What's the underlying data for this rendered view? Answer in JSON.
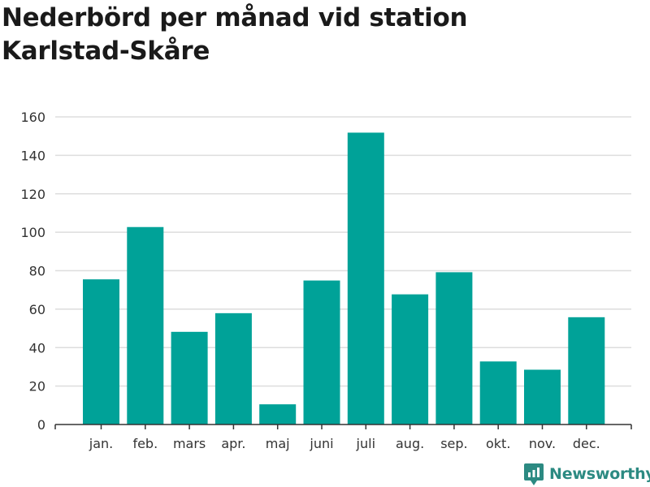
{
  "title": "Nederbörd per månad vid station Karlstad-Skåre",
  "brand": {
    "name": "Newsworthy",
    "color": "#2c8a82"
  },
  "colors": {
    "bar": "#00a298",
    "grid": "#dddddd",
    "axis": "#333333",
    "text": "#333333"
  },
  "chart_data": {
    "type": "bar",
    "title": "Nederbörd per månad vid station Karlstad-Skåre",
    "xlabel": "",
    "ylabel": "",
    "categories": [
      "jan.",
      "feb.",
      "mars",
      "apr.",
      "maj",
      "juni",
      "juli",
      "aug.",
      "sep.",
      "okt.",
      "nov.",
      "dec."
    ],
    "values": [
      75.5,
      102.7,
      48.2,
      57.9,
      10.5,
      74.9,
      151.8,
      67.7,
      79.2,
      32.8,
      28.5,
      55.8
    ],
    "ylim": [
      0,
      160
    ],
    "yticks": [
      0,
      20,
      40,
      60,
      80,
      100,
      120,
      140,
      160
    ],
    "grid": true,
    "legend": "none"
  }
}
